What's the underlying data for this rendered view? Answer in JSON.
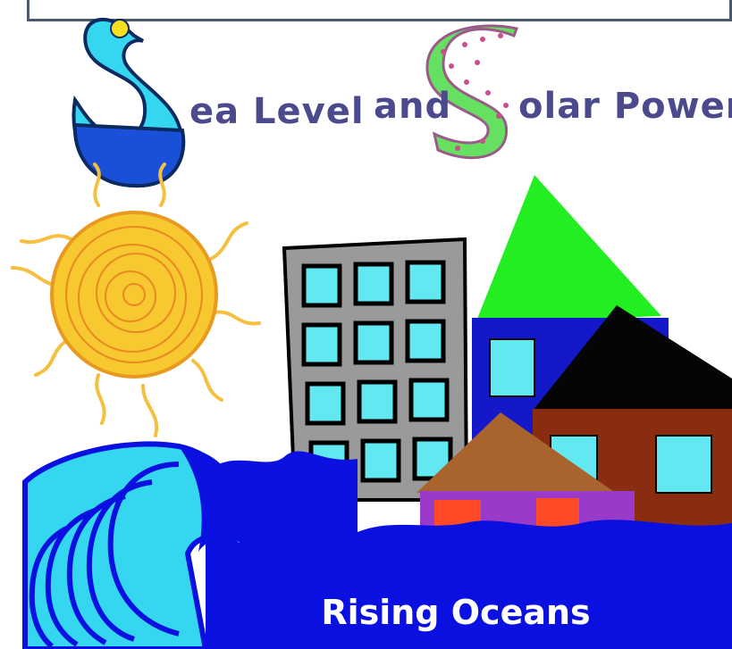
{
  "title": {
    "sea_rest": "ea Level",
    "and": "and",
    "solar_rest": "olar Power"
  },
  "caption": "Rising Oceans",
  "colors": {
    "title_text": "#4a4a8c",
    "ocean": "#0a10e0",
    "ocean_light": "#35d6f0",
    "sun": "#f5b820",
    "house_roof_green": "#22ee22",
    "house_wall_blue": "#1418c8",
    "house_roof_black": "#050505",
    "house_wall_brown": "#8a2c10",
    "building_gray": "#9a9a9a",
    "window_cyan": "#62e8f0",
    "letter_s_green": "#66e060",
    "letter_s_pink": "#c8508a"
  },
  "icons": [
    "swan-s-letter-icon",
    "polka-s-letter-icon",
    "sun-icon",
    "wave-icon",
    "office-building-icon",
    "house-icon"
  ]
}
